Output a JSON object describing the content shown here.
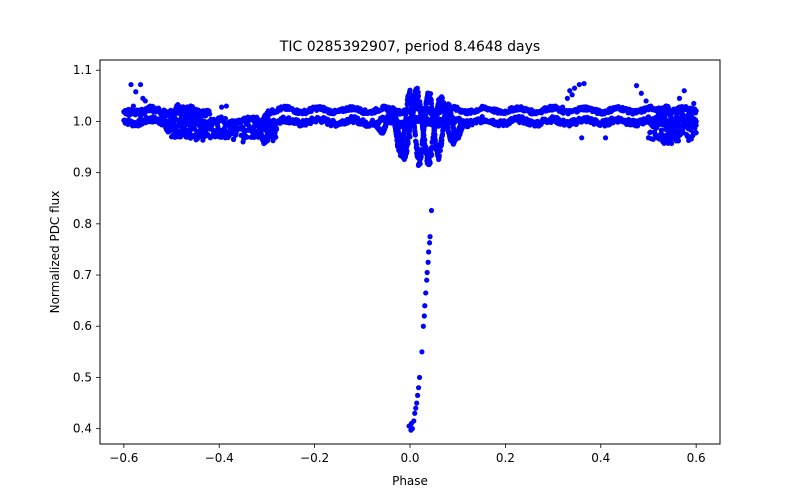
{
  "chart_data": {
    "type": "scatter",
    "title": "TIC 0285392907, period 8.4648 days",
    "xlabel": "Phase",
    "ylabel": "Normalized PDC flux",
    "xlim": [
      -0.65,
      0.65
    ],
    "ylim": [
      0.37,
      1.12
    ],
    "xticks": [
      -0.6,
      -0.4,
      -0.2,
      0.0,
      0.2,
      0.4,
      0.6
    ],
    "xtick_labels": [
      "−0.6",
      "−0.4",
      "−0.2",
      "0.0",
      "0.2",
      "0.4",
      "0.6"
    ],
    "yticks": [
      0.4,
      0.5,
      0.6,
      0.7,
      0.8,
      0.9,
      1.0,
      1.1
    ],
    "ytick_labels": [
      "0.4",
      "0.5",
      "0.6",
      "0.7",
      "0.8",
      "0.9",
      "1.0",
      "1.1"
    ],
    "marker_color": "#0000ff",
    "series": [
      {
        "name": "eclipse_dip",
        "points": [
          [
            0.045,
            0.826
          ],
          [
            0.042,
            0.775
          ],
          [
            0.041,
            0.763
          ],
          [
            0.039,
            0.745
          ],
          [
            0.038,
            0.725
          ],
          [
            0.036,
            0.705
          ],
          [
            0.035,
            0.69
          ],
          [
            0.033,
            0.665
          ],
          [
            0.031,
            0.64
          ],
          [
            0.03,
            0.62
          ],
          [
            0.028,
            0.6
          ],
          [
            0.025,
            0.55
          ],
          [
            0.02,
            0.5
          ],
          [
            0.018,
            0.48
          ],
          [
            0.016,
            0.465
          ],
          [
            0.014,
            0.45
          ],
          [
            0.012,
            0.44
          ],
          [
            0.01,
            0.43
          ],
          [
            0.008,
            0.415
          ],
          [
            0.005,
            0.4
          ],
          [
            0.002,
            0.397
          ],
          [
            -0.002,
            0.405
          ],
          [
            0.003,
            0.41
          ]
        ]
      },
      {
        "name": "scattered_outliers",
        "points": [
          [
            -0.585,
            1.072
          ],
          [
            -0.565,
            1.072
          ],
          [
            -0.575,
            1.058
          ],
          [
            -0.555,
            1.04
          ],
          [
            -0.545,
            1.03
          ],
          [
            -0.535,
            1.025
          ],
          [
            -0.58,
            1.03
          ],
          [
            -0.56,
            1.045
          ],
          [
            -0.37,
            0.965
          ],
          [
            -0.35,
            0.96
          ],
          [
            -0.395,
            1.028
          ],
          [
            -0.385,
            1.03
          ],
          [
            0.305,
            1.03
          ],
          [
            0.32,
            1.028
          ],
          [
            0.33,
            1.045
          ],
          [
            0.335,
            1.06
          ],
          [
            0.345,
            1.065
          ],
          [
            0.355,
            1.072
          ],
          [
            0.365,
            1.074
          ],
          [
            0.34,
            1.052
          ],
          [
            0.36,
            0.968
          ],
          [
            0.41,
            0.968
          ],
          [
            0.475,
            1.07
          ],
          [
            0.485,
            1.055
          ],
          [
            0.495,
            1.04
          ],
          [
            0.505,
            1.03
          ],
          [
            0.575,
            1.06
          ],
          [
            0.565,
            1.045
          ],
          [
            0.595,
            1.035
          ],
          [
            -0.005,
            0.985
          ],
          [
            0.0,
            0.97
          ]
        ]
      }
    ],
    "bands": [
      {
        "name": "baseline_band",
        "x": [
          -0.6,
          0.6
        ],
        "y_center": 1.0,
        "spread": 0.006
      },
      {
        "name": "upper_band",
        "x": [
          -0.6,
          -0.42
        ],
        "y_center": 1.02,
        "spread": 0.006
      },
      {
        "name": "upper_band",
        "x": [
          -0.3,
          0.6
        ],
        "y_center": 1.022,
        "spread": 0.004
      },
      {
        "name": "lower_band",
        "x": [
          -0.5,
          -0.28
        ],
        "y_center": 0.98,
        "spread": 0.015
      },
      {
        "name": "lower_band",
        "x": [
          0.5,
          0.6
        ],
        "y_center": 0.98,
        "spread": 0.02
      }
    ],
    "wiggles": [
      {
        "name": "central_oscillation",
        "x": [
          -0.07,
          0.12
        ],
        "amp": 0.08,
        "center": 0.99
      },
      {
        "name": "left_wiggle",
        "x": [
          -0.53,
          -0.42
        ],
        "amp": 0.035,
        "center": 1.0
      },
      {
        "name": "left_wiggle",
        "x": [
          -0.33,
          -0.28
        ],
        "amp": 0.03,
        "center": 0.985
      },
      {
        "name": "right_wiggle",
        "x": [
          0.5,
          0.6
        ],
        "amp": 0.035,
        "center": 1.0
      }
    ]
  }
}
